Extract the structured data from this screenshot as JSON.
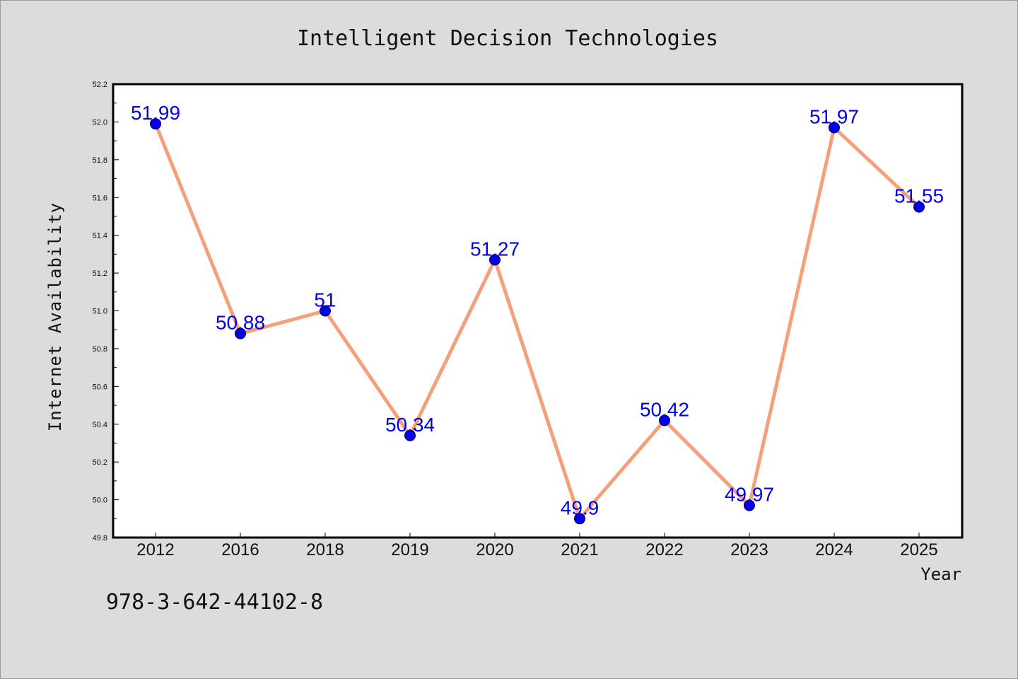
{
  "chart_data": {
    "type": "line",
    "title": "Intelligent Decision Technologies",
    "xlabel": "Year",
    "ylabel": "Internet Availability",
    "categories": [
      "2012",
      "2016",
      "2018",
      "2019",
      "2020",
      "2021",
      "2022",
      "2023",
      "2024",
      "2025"
    ],
    "series": [
      {
        "values": [
          51.99,
          50.88,
          51,
          50.34,
          51.27,
          49.9,
          50.42,
          49.97,
          51.97,
          51.55
        ],
        "labels": [
          "51.99",
          "50.88",
          "51",
          "50.34",
          "51.27",
          "49.9",
          "50.42",
          "49.97",
          "51.97",
          "51.55"
        ],
        "line_color": "#f4a07a",
        "marker_color": "#0000ee"
      }
    ],
    "ylim": [
      49.8,
      52.2
    ],
    "yticks": [
      "49.8",
      "50.0",
      "50.2",
      "50.4",
      "50.6",
      "50.8",
      "51.0",
      "51.2",
      "51.4",
      "51.6",
      "51.8",
      "52.0",
      "52.2"
    ],
    "grid": false,
    "label_color": "#0000ee"
  },
  "footer": {
    "isbn": "978-3-642-44102-8"
  }
}
